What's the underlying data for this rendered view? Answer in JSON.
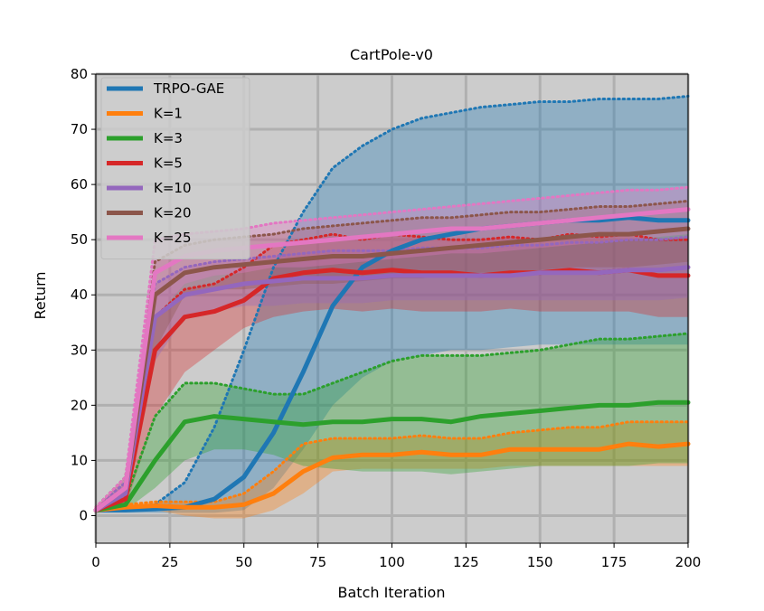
{
  "chart_data": {
    "type": "line",
    "title": "CartPole-v0",
    "xlabel": "Batch Iteration",
    "ylabel": "Return",
    "xlim": [
      0,
      200
    ],
    "ylim": [
      -5,
      80
    ],
    "xticks": [
      0,
      25,
      50,
      75,
      100,
      125,
      150,
      175,
      200
    ],
    "yticks": [
      0,
      10,
      20,
      30,
      40,
      50,
      60,
      70,
      80
    ],
    "grid": true,
    "legend_position": "top-left",
    "background": "#cccccc",
    "series": [
      {
        "name": "TRPO-GAE",
        "color": "#1f77b4",
        "x": [
          0,
          10,
          20,
          30,
          40,
          50,
          60,
          70,
          80,
          90,
          100,
          110,
          120,
          130,
          140,
          150,
          160,
          170,
          180,
          190,
          200
        ],
        "mean": [
          1,
          1,
          1.2,
          1.5,
          3,
          7,
          15,
          26,
          38,
          45,
          48,
          50,
          51,
          52,
          52.5,
          53,
          53.5,
          53.5,
          54,
          53.5,
          53.5
        ],
        "upper": [
          1.5,
          1.5,
          2,
          6,
          16,
          30,
          45,
          55,
          63,
          67,
          70,
          72,
          73,
          74,
          74.5,
          75,
          75,
          75.5,
          75.5,
          75.5,
          76
        ],
        "lower": [
          0.5,
          0.5,
          0.5,
          0.5,
          0.5,
          1,
          5,
          12,
          20,
          25,
          28,
          29,
          30,
          30,
          30.5,
          31,
          31,
          31,
          31,
          31,
          31
        ]
      },
      {
        "name": "K=1",
        "color": "#ff7f0e",
        "x": [
          0,
          10,
          20,
          30,
          40,
          50,
          60,
          70,
          80,
          90,
          100,
          110,
          120,
          130,
          140,
          150,
          160,
          170,
          180,
          190,
          200
        ],
        "mean": [
          1,
          1.5,
          1.8,
          1.5,
          1.5,
          2,
          4,
          8,
          10.5,
          11,
          11,
          11.5,
          11,
          11,
          12,
          12,
          12,
          12,
          13,
          12.5,
          13
        ],
        "upper": [
          1.5,
          2,
          2.5,
          2.5,
          2.5,
          4,
          8,
          13,
          14,
          14,
          14,
          14.5,
          14,
          14,
          15,
          15.5,
          16,
          16,
          17,
          17,
          17
        ],
        "lower": [
          0.5,
          1,
          1,
          0,
          -0.5,
          -0.5,
          1,
          4,
          8,
          8.5,
          8.5,
          8.5,
          8.5,
          8.5,
          9,
          9,
          9,
          9,
          9,
          9,
          9
        ]
      },
      {
        "name": "K=3",
        "color": "#2ca02c",
        "x": [
          0,
          10,
          20,
          30,
          40,
          50,
          60,
          70,
          80,
          90,
          100,
          110,
          120,
          130,
          140,
          150,
          160,
          170,
          180,
          190,
          200
        ],
        "mean": [
          1,
          2,
          10,
          17,
          18,
          17.5,
          17,
          16.5,
          17,
          17,
          17.5,
          17.5,
          17,
          18,
          18.5,
          19,
          19.5,
          20,
          20,
          20.5,
          20.5
        ],
        "upper": [
          1.5,
          3,
          18,
          24,
          24,
          23,
          22,
          22,
          24,
          26,
          28,
          29,
          29,
          29,
          29.5,
          30,
          31,
          32,
          32,
          32.5,
          33
        ],
        "lower": [
          0.5,
          1,
          5,
          10,
          12,
          12,
          11,
          9,
          8.5,
          8,
          8,
          8,
          7.5,
          8,
          8.5,
          9,
          9,
          9,
          9,
          9.5,
          9.5
        ]
      },
      {
        "name": "K=5",
        "color": "#d62728",
        "x": [
          0,
          10,
          20,
          30,
          40,
          50,
          60,
          70,
          80,
          90,
          100,
          110,
          120,
          130,
          140,
          150,
          160,
          170,
          180,
          190,
          200
        ],
        "mean": [
          1,
          3,
          30,
          36,
          37,
          39,
          43,
          44,
          44.5,
          44,
          44.5,
          44,
          44,
          43.5,
          44,
          44,
          44.5,
          44,
          44.5,
          43.5,
          43.5
        ],
        "upper": [
          1.5,
          5,
          36,
          41,
          42,
          45,
          49,
          50,
          51,
          50,
          51,
          50.5,
          50,
          50,
          50.5,
          50,
          51,
          50.5,
          51,
          50,
          50
        ],
        "lower": [
          0.5,
          1.5,
          18,
          26,
          30,
          34,
          36,
          37,
          37.5,
          37,
          37.5,
          37,
          37,
          37,
          37.5,
          37,
          37,
          37,
          37,
          36,
          36
        ]
      },
      {
        "name": "K=10",
        "color": "#9467bd",
        "x": [
          0,
          10,
          20,
          30,
          40,
          50,
          60,
          70,
          80,
          90,
          100,
          110,
          120,
          130,
          140,
          150,
          160,
          170,
          180,
          190,
          200
        ],
        "mean": [
          1,
          4,
          36,
          40,
          41,
          42,
          42.5,
          43,
          43,
          43,
          43.5,
          43.5,
          43.5,
          43.5,
          43.5,
          44,
          44,
          44,
          44.5,
          44.5,
          45
        ],
        "upper": [
          1.5,
          6,
          42,
          45,
          46,
          46.5,
          47,
          47.5,
          48,
          48,
          48,
          48.5,
          48.5,
          48.5,
          49,
          49,
          49.5,
          49.5,
          50,
          50,
          50.5
        ],
        "lower": [
          0.5,
          2,
          28,
          36,
          37,
          38,
          38,
          38.5,
          38.5,
          38.5,
          39,
          39,
          39,
          39,
          39,
          39,
          39,
          39,
          39,
          39,
          39.5
        ]
      },
      {
        "name": "K=20",
        "color": "#8c564b",
        "x": [
          0,
          10,
          20,
          30,
          40,
          50,
          60,
          70,
          80,
          90,
          100,
          110,
          120,
          130,
          140,
          150,
          160,
          170,
          180,
          190,
          200
        ],
        "mean": [
          1,
          5,
          40,
          44,
          45,
          45.5,
          46,
          46.5,
          47,
          47,
          47.5,
          48,
          48.5,
          49,
          49.5,
          50,
          50.5,
          51,
          51,
          51.5,
          52
        ],
        "upper": [
          1.5,
          7,
          46,
          49,
          50,
          50.5,
          51,
          52,
          52.5,
          53,
          53.5,
          54,
          54,
          54.5,
          55,
          55,
          55.5,
          56,
          56,
          56.5,
          57
        ],
        "lower": [
          0.5,
          2.5,
          30,
          40,
          41,
          41,
          41.5,
          42,
          42,
          42.5,
          43,
          43,
          43.5,
          44,
          44,
          44.5,
          45,
          45,
          45,
          45.5,
          46
        ]
      },
      {
        "name": "K=25",
        "color": "#e377c2",
        "x": [
          0,
          10,
          20,
          30,
          40,
          50,
          60,
          70,
          80,
          90,
          100,
          110,
          120,
          130,
          140,
          150,
          160,
          170,
          180,
          190,
          200
        ],
        "mean": [
          1,
          5,
          44,
          47,
          48,
          48.5,
          49,
          49.5,
          50,
          50.5,
          51,
          51.5,
          52,
          52,
          52.5,
          53,
          53.5,
          54,
          54.5,
          55,
          55.5
        ],
        "upper": [
          1.5,
          7,
          50,
          51,
          51.5,
          52,
          53,
          53.5,
          54,
          54.5,
          55,
          55.5,
          56,
          56.5,
          57,
          57.5,
          58,
          58.5,
          59,
          59,
          59.5
        ],
        "lower": [
          0.5,
          2.5,
          36,
          42,
          43.5,
          44,
          45,
          45,
          45.5,
          46,
          46.5,
          47,
          47.5,
          47.5,
          48,
          48.5,
          49,
          49.5,
          50,
          50.5,
          51
        ]
      }
    ]
  }
}
